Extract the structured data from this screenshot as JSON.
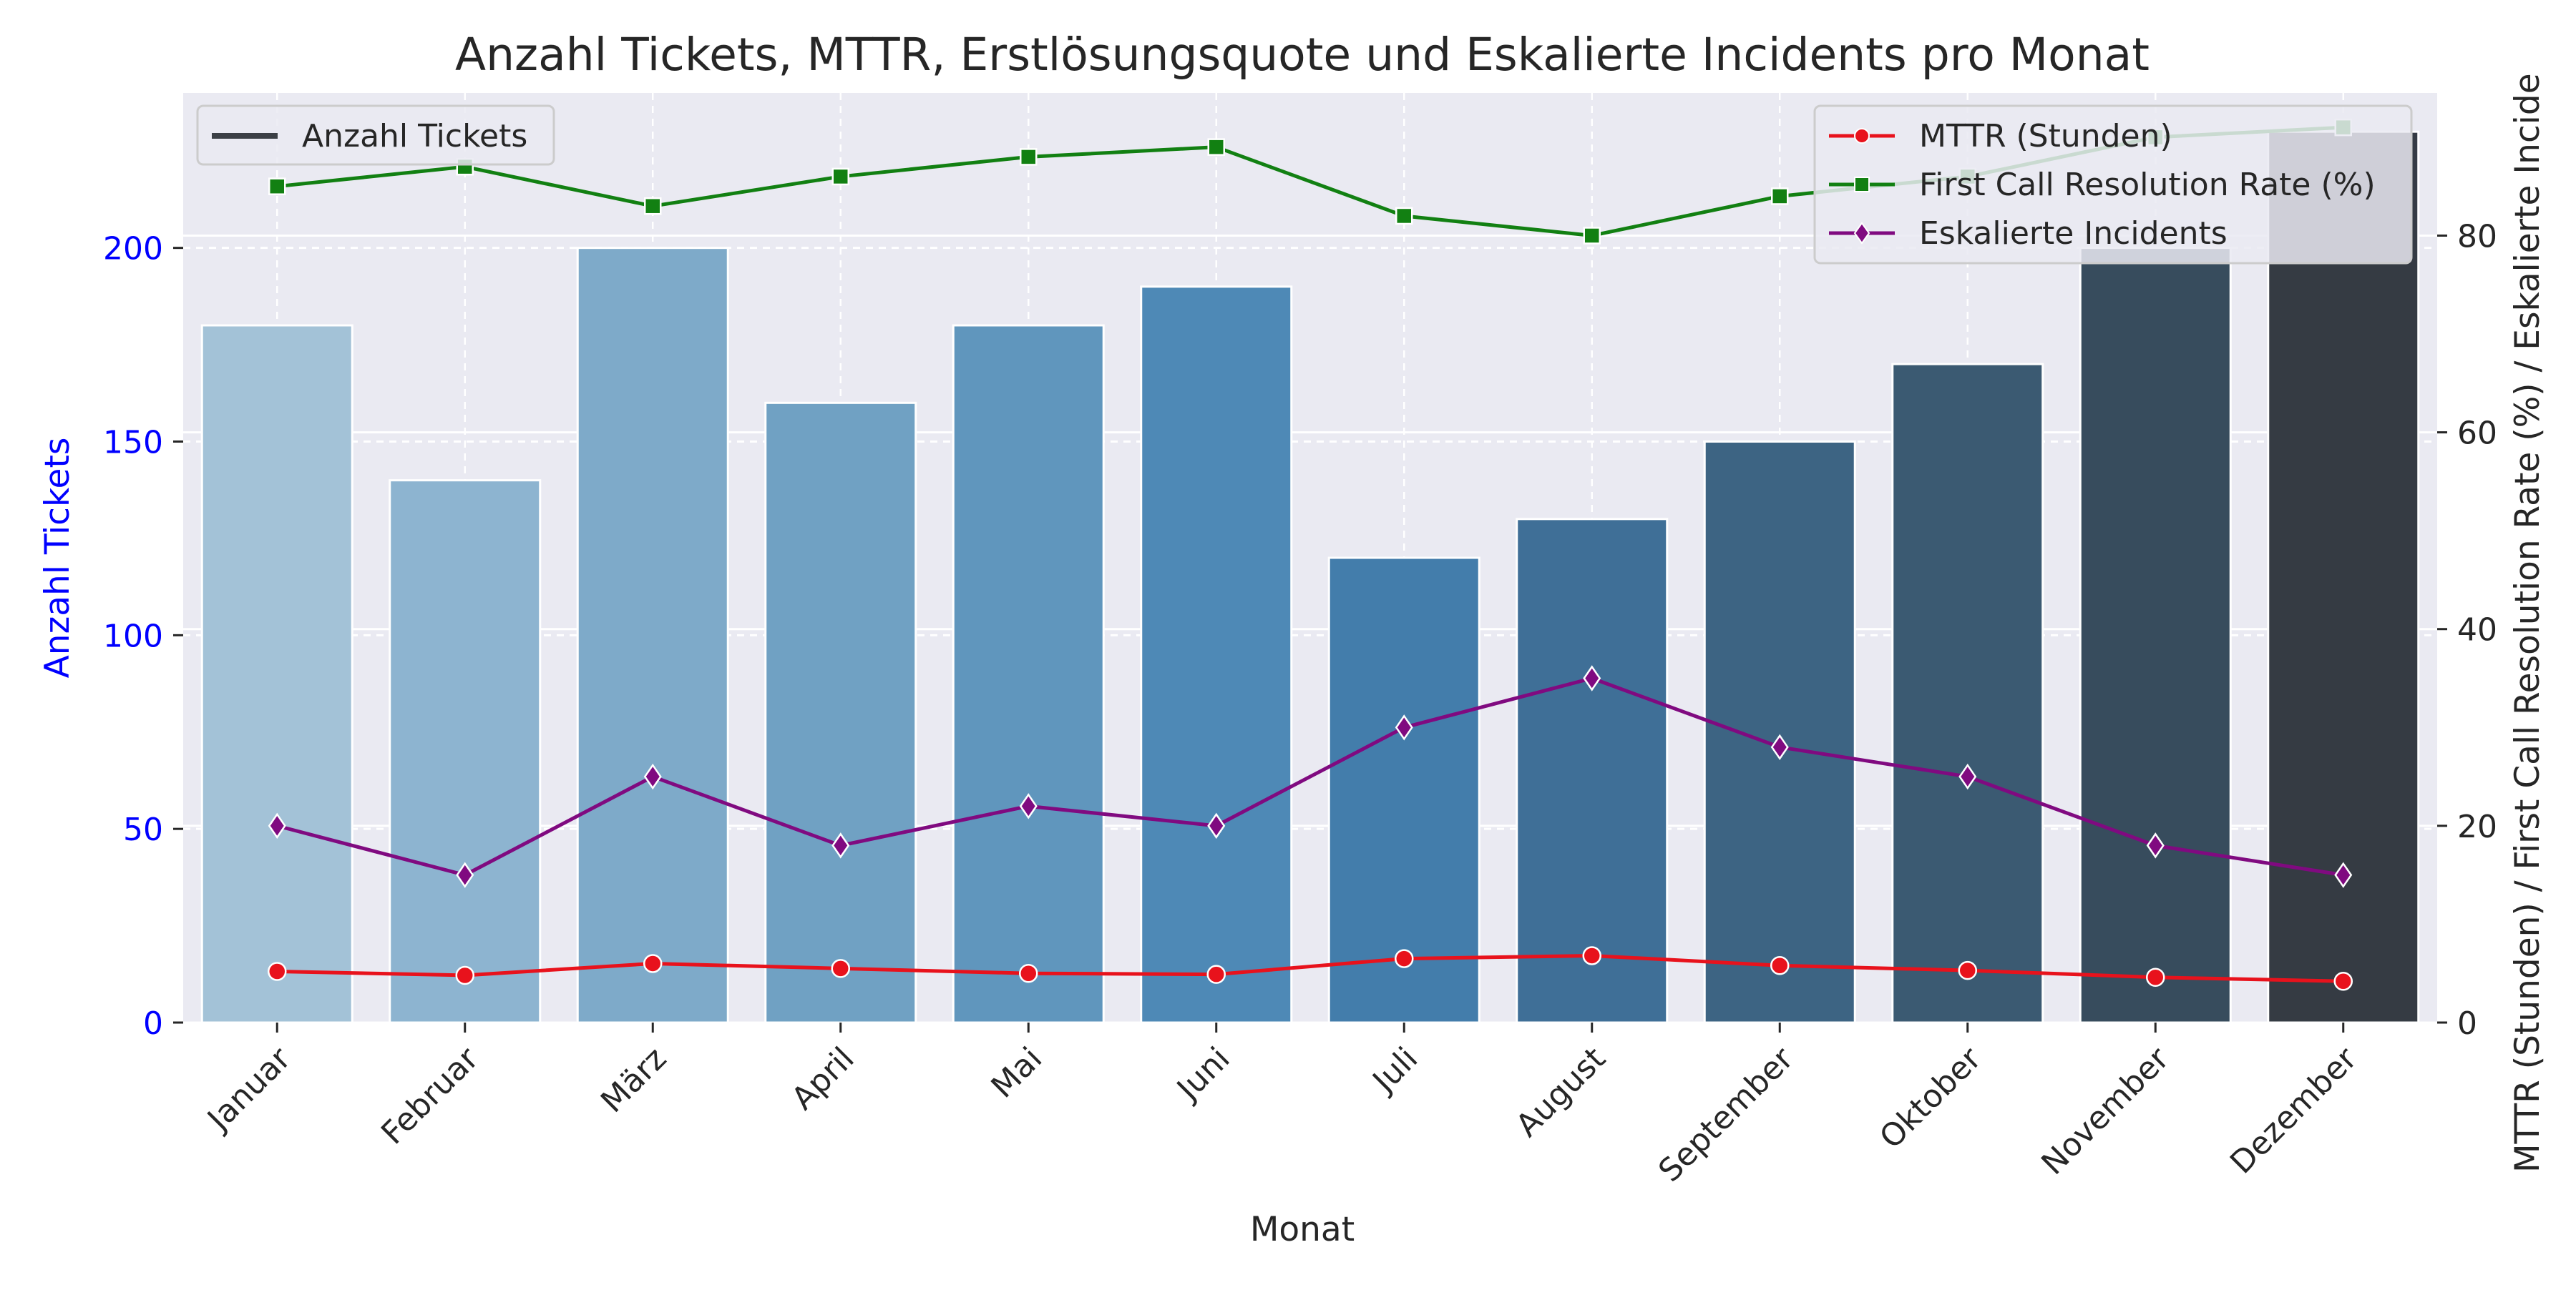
{
  "chart_data": {
    "type": "bar",
    "title": "Anzahl Tickets, MTTR, Erstlösungsquote und Eskalierte Incidents pro Monat",
    "xlabel": "Monat",
    "ylabel_left": "Anzahl Tickets",
    "ylabel_right": "MTTR (Stunden) / First Call Resolution Rate (%) / Eskalierte Incide",
    "categories": [
      "Januar",
      "Februar",
      "März",
      "April",
      "Mai",
      "Juni",
      "Juli",
      "August",
      "September",
      "Oktober",
      "November",
      "Dezember"
    ],
    "ylim_left": [
      0,
      240
    ],
    "ylim_right": [
      0,
      94.5
    ],
    "yticks_left": [
      0,
      50,
      100,
      150,
      200
    ],
    "yticks_right": [
      0,
      20,
      40,
      60,
      80
    ],
    "grid": true,
    "bars": {
      "name": "Anzahl Tickets",
      "values": [
        180,
        140,
        200,
        160,
        180,
        190,
        120,
        130,
        150,
        170,
        200,
        230
      ],
      "colors": [
        "#a3c2d7",
        "#8db4d0",
        "#7eaac9",
        "#70a1c3",
        "#6096bd",
        "#4e89b6",
        "#437dab",
        "#3f6f97",
        "#3d6483",
        "#3b5a72",
        "#374c5d",
        "#353b43"
      ]
    },
    "series": [
      {
        "name": "MTTR (Stunden)",
        "color": "#e8121c",
        "marker": "circle",
        "values": [
          5.2,
          4.8,
          6.0,
          5.5,
          5.0,
          4.9,
          6.5,
          6.8,
          5.8,
          5.3,
          4.6,
          4.2
        ]
      },
      {
        "name": "First Call Resolution Rate (%)",
        "color": "#128012",
        "marker": "square",
        "values": [
          85,
          87,
          83,
          86,
          88,
          89,
          82,
          80,
          84,
          86,
          90,
          91
        ]
      },
      {
        "name": "Eskalierte Incidents",
        "color": "#800a80",
        "marker": "diamond",
        "values": [
          20,
          15,
          25,
          18,
          22,
          20,
          30,
          35,
          28,
          25,
          18,
          15
        ]
      }
    ],
    "legend_left": {
      "placement": "top-left"
    },
    "legend_right": {
      "placement": "top-right"
    },
    "colors": {
      "plot_bg": "#eaeaf2",
      "grid": "#ffffff",
      "left_axis": "#0000ff",
      "text": "#262626"
    }
  }
}
